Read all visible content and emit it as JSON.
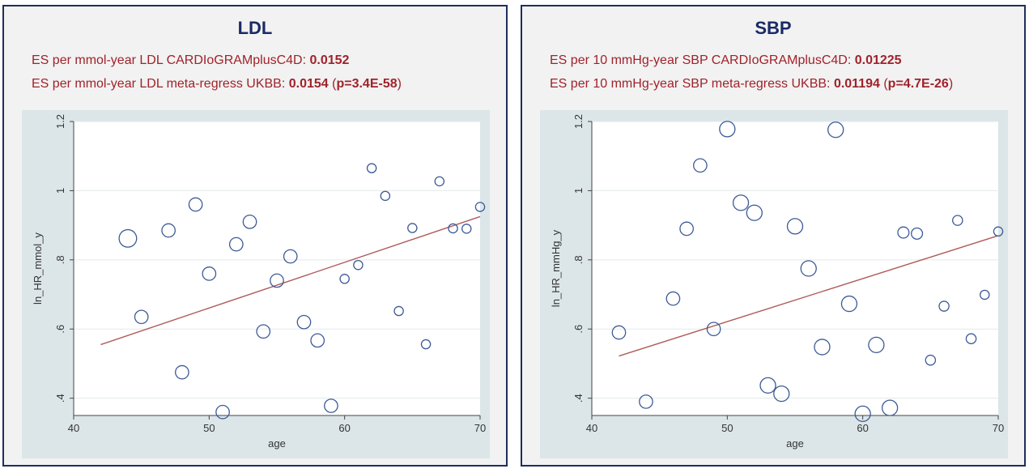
{
  "panels": [
    {
      "title": "LDL",
      "es_lines": [
        {
          "text": "ES per mmol-year LDL CARDIoGRAMplusC4D: ",
          "value": "0.0152",
          "extra_open": "",
          "extra": "",
          "extra_close": ""
        },
        {
          "text": "ES per mmol-year LDL meta-regress UKBB: ",
          "value": "0.0154",
          "extra_open": " (",
          "extra": "p=3.4E-58",
          "extra_close": ")"
        }
      ],
      "colors": {
        "point": "#3d5a96",
        "fit": "#b05a5a"
      }
    },
    {
      "title": "SBP",
      "es_lines": [
        {
          "text": "ES per 10 mmHg-year SBP CARDIoGRAMplusC4D: ",
          "value": "0.01225",
          "extra_open": "",
          "extra": "",
          "extra_close": ""
        },
        {
          "text": "ES per 10 mmHg-year SBP meta-regress UKBB: ",
          "value": "0.01194",
          "extra_open": " (",
          "extra": "p=4.7E-26",
          "extra_close": ")"
        }
      ],
      "colors": {
        "point": "#3d5a96",
        "fit": "#b05a5a"
      }
    }
  ],
  "chart_data": [
    {
      "type": "scatter",
      "xlabel": "age",
      "ylabel": "ln_HR_mmol_y",
      "xlim": [
        40,
        70
      ],
      "ylim": [
        0.35,
        1.2
      ],
      "xticks": [
        40,
        50,
        60,
        70
      ],
      "xtick_labels": [
        "40",
        "50",
        "60",
        "70"
      ],
      "yticks": [
        0.4,
        0.6,
        0.8,
        1.0,
        1.2
      ],
      "ytick_labels": [
        ".4",
        ".6",
        ".8",
        "1",
        "1.2"
      ],
      "grid": true,
      "fit_line": {
        "x": [
          42,
          70
        ],
        "y": [
          0.555,
          0.925
        ]
      },
      "points": [
        {
          "x": 44,
          "y": 0.862,
          "w": 3
        },
        {
          "x": 45,
          "y": 0.635,
          "w": 2
        },
        {
          "x": 47,
          "y": 0.885,
          "w": 2
        },
        {
          "x": 48,
          "y": 0.475,
          "w": 2
        },
        {
          "x": 49,
          "y": 0.96,
          "w": 2
        },
        {
          "x": 50,
          "y": 0.76,
          "w": 2
        },
        {
          "x": 51,
          "y": 0.36,
          "w": 2
        },
        {
          "x": 52,
          "y": 0.845,
          "w": 2
        },
        {
          "x": 53,
          "y": 0.91,
          "w": 2
        },
        {
          "x": 54,
          "y": 0.593,
          "w": 2
        },
        {
          "x": 55,
          "y": 0.74,
          "w": 2
        },
        {
          "x": 56,
          "y": 0.81,
          "w": 2
        },
        {
          "x": 57,
          "y": 0.62,
          "w": 2
        },
        {
          "x": 58,
          "y": 0.567,
          "w": 2
        },
        {
          "x": 59,
          "y": 0.378,
          "w": 2
        },
        {
          "x": 60,
          "y": 0.745,
          "w": 1
        },
        {
          "x": 61,
          "y": 0.785,
          "w": 1
        },
        {
          "x": 62,
          "y": 1.065,
          "w": 1
        },
        {
          "x": 63,
          "y": 0.985,
          "w": 1
        },
        {
          "x": 64,
          "y": 0.652,
          "w": 1
        },
        {
          "x": 65,
          "y": 0.892,
          "w": 1
        },
        {
          "x": 66,
          "y": 0.556,
          "w": 1
        },
        {
          "x": 67,
          "y": 1.027,
          "w": 1
        },
        {
          "x": 68,
          "y": 0.891,
          "w": 1
        },
        {
          "x": 69,
          "y": 0.89,
          "w": 1
        },
        {
          "x": 70,
          "y": 0.953,
          "w": 1
        }
      ]
    },
    {
      "type": "scatter",
      "xlabel": "age",
      "ylabel": "ln_HR_mmHg_y",
      "xlim": [
        40,
        70
      ],
      "ylim": [
        0.35,
        1.2
      ],
      "xticks": [
        40,
        50,
        60,
        70
      ],
      "xtick_labels": [
        "40",
        "50",
        "60",
        "70"
      ],
      "yticks": [
        0.4,
        0.6,
        0.8,
        1.0,
        1.2
      ],
      "ytick_labels": [
        ".4",
        ".6",
        ".8",
        "1",
        "1.2"
      ],
      "grid": true,
      "fit_line": {
        "x": [
          42,
          70
        ],
        "y": [
          0.522,
          0.87
        ]
      },
      "points": [
        {
          "x": 42,
          "y": 0.59,
          "w": 2
        },
        {
          "x": 44,
          "y": 0.39,
          "w": 2
        },
        {
          "x": 46,
          "y": 0.688,
          "w": 2
        },
        {
          "x": 47,
          "y": 0.89,
          "w": 2
        },
        {
          "x": 48,
          "y": 1.073,
          "w": 2
        },
        {
          "x": 49,
          "y": 0.6,
          "w": 2
        },
        {
          "x": 50,
          "y": 1.178,
          "w": 2.5
        },
        {
          "x": 51,
          "y": 0.965,
          "w": 2.5
        },
        {
          "x": 52,
          "y": 0.936,
          "w": 2.5
        },
        {
          "x": 53,
          "y": 0.437,
          "w": 2.5
        },
        {
          "x": 54,
          "y": 0.413,
          "w": 2.5
        },
        {
          "x": 55,
          "y": 0.897,
          "w": 2.5
        },
        {
          "x": 56,
          "y": 0.775,
          "w": 2.5
        },
        {
          "x": 57,
          "y": 0.548,
          "w": 2.5
        },
        {
          "x": 58,
          "y": 1.176,
          "w": 2.5
        },
        {
          "x": 59,
          "y": 0.673,
          "w": 2.5
        },
        {
          "x": 60,
          "y": 0.355,
          "w": 2.5
        },
        {
          "x": 61,
          "y": 0.554,
          "w": 2.5
        },
        {
          "x": 62,
          "y": 0.372,
          "w": 2.5
        },
        {
          "x": 63,
          "y": 0.879,
          "w": 1.5
        },
        {
          "x": 64,
          "y": 0.876,
          "w": 1.5
        },
        {
          "x": 65,
          "y": 0.51,
          "w": 1.2
        },
        {
          "x": 66,
          "y": 0.666,
          "w": 1.2
        },
        {
          "x": 67,
          "y": 0.914,
          "w": 1.2
        },
        {
          "x": 68,
          "y": 0.572,
          "w": 1.2
        },
        {
          "x": 69,
          "y": 0.699,
          "w": 1
        },
        {
          "x": 70,
          "y": 0.882,
          "w": 1
        }
      ]
    }
  ]
}
